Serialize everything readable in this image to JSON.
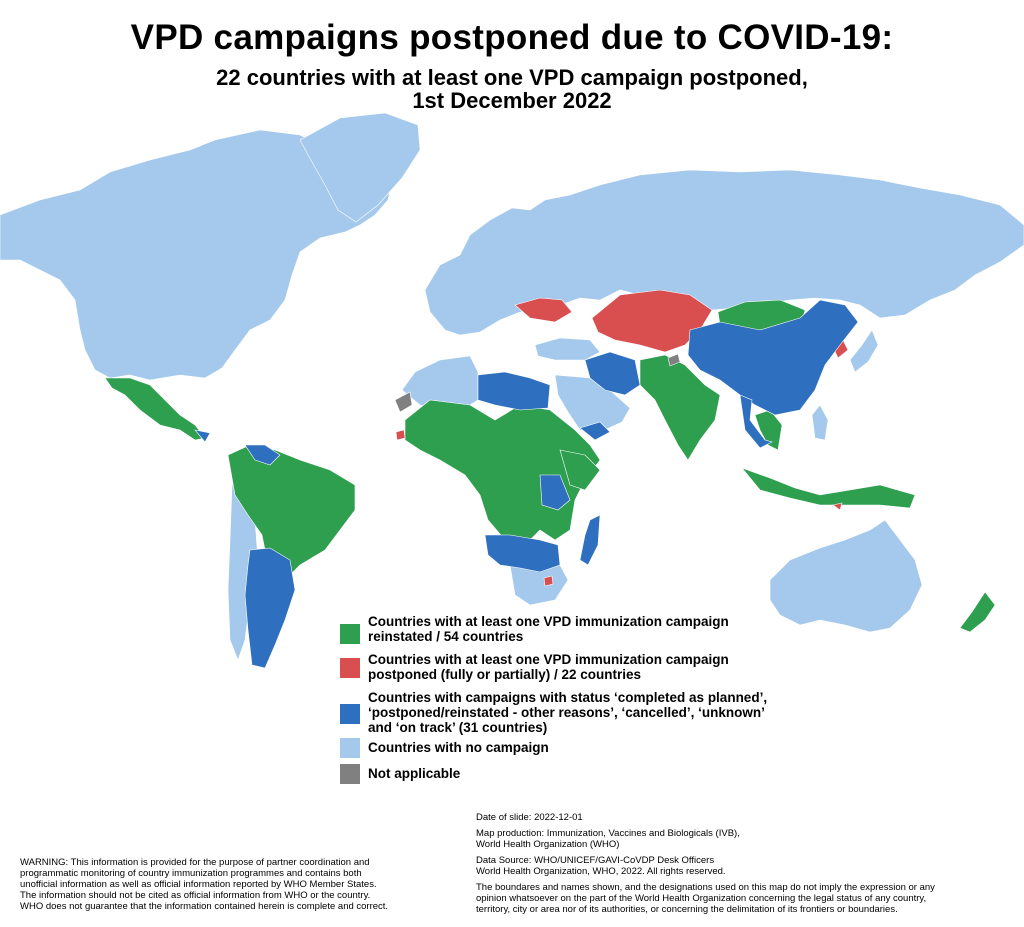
{
  "title": "VPD campaigns postponed due to COVID-19:",
  "subtitle_line1": "22 countries with at least one VPD campaign postponed,",
  "subtitle_line2": "1st December 2022",
  "colors": {
    "reinstated": "#2e9e4f",
    "postponed": "#d94f50",
    "other_status": "#2f6fbf",
    "no_campaign": "#a4c9ec",
    "not_applicable": "#808080"
  },
  "legend": {
    "reinstated_line1": "Countries with at least one VPD immunization campaign",
    "reinstated_line2": "reinstated / 54 countries",
    "postponed_line1": "Countries with at least one VPD immunization campaign",
    "postponed_line2": "postponed (fully or partially) / 22 countries",
    "other_line1": "Countries with campaigns with status ‘completed as planned’,",
    "other_line2": "‘postponed/reinstated - other reasons’, ‘cancelled’, ‘unknown’",
    "other_line3": "and ‘on track’ (31 countries)",
    "no_campaign": "Countries with no campaign",
    "not_applicable": "Not applicable"
  },
  "notes": {
    "date": "Date of slide: 2022-12-01",
    "production_line1": "Map production: Immunization, Vaccines and Biologicals (IVB),",
    "production_line2": "World Health Organization (WHO)",
    "source_line1": "Data Source: WHO/UNICEF/GAVI-CoVDP Desk Officers",
    "source_line2": "World Health Organization, WHO, 2022. All rights reserved.",
    "disclaimer_line1": "The boundares and names shown, and the designations used on this map do not imply the expression or any",
    "disclaimer_line2": "opinion whatsoever on the part of the World Health Organization concerning the legal status of any country,",
    "disclaimer_line3": "territory, city or area nor of its authorities, or concerning the delimitation of its frontiers or boundaries."
  },
  "warning": {
    "line1": "WARNING: This information is provided for the purpose of partner coordination and",
    "line2": "programmatic monitoring of country immunization programmes and contains both",
    "line3": "unofficial information as well as official information reported by WHO Member States.",
    "line4": "The information should not be cited as official information from WHO or the country.",
    "line5": "WHO does not guarantee that the information contained herein is complete and correct."
  }
}
